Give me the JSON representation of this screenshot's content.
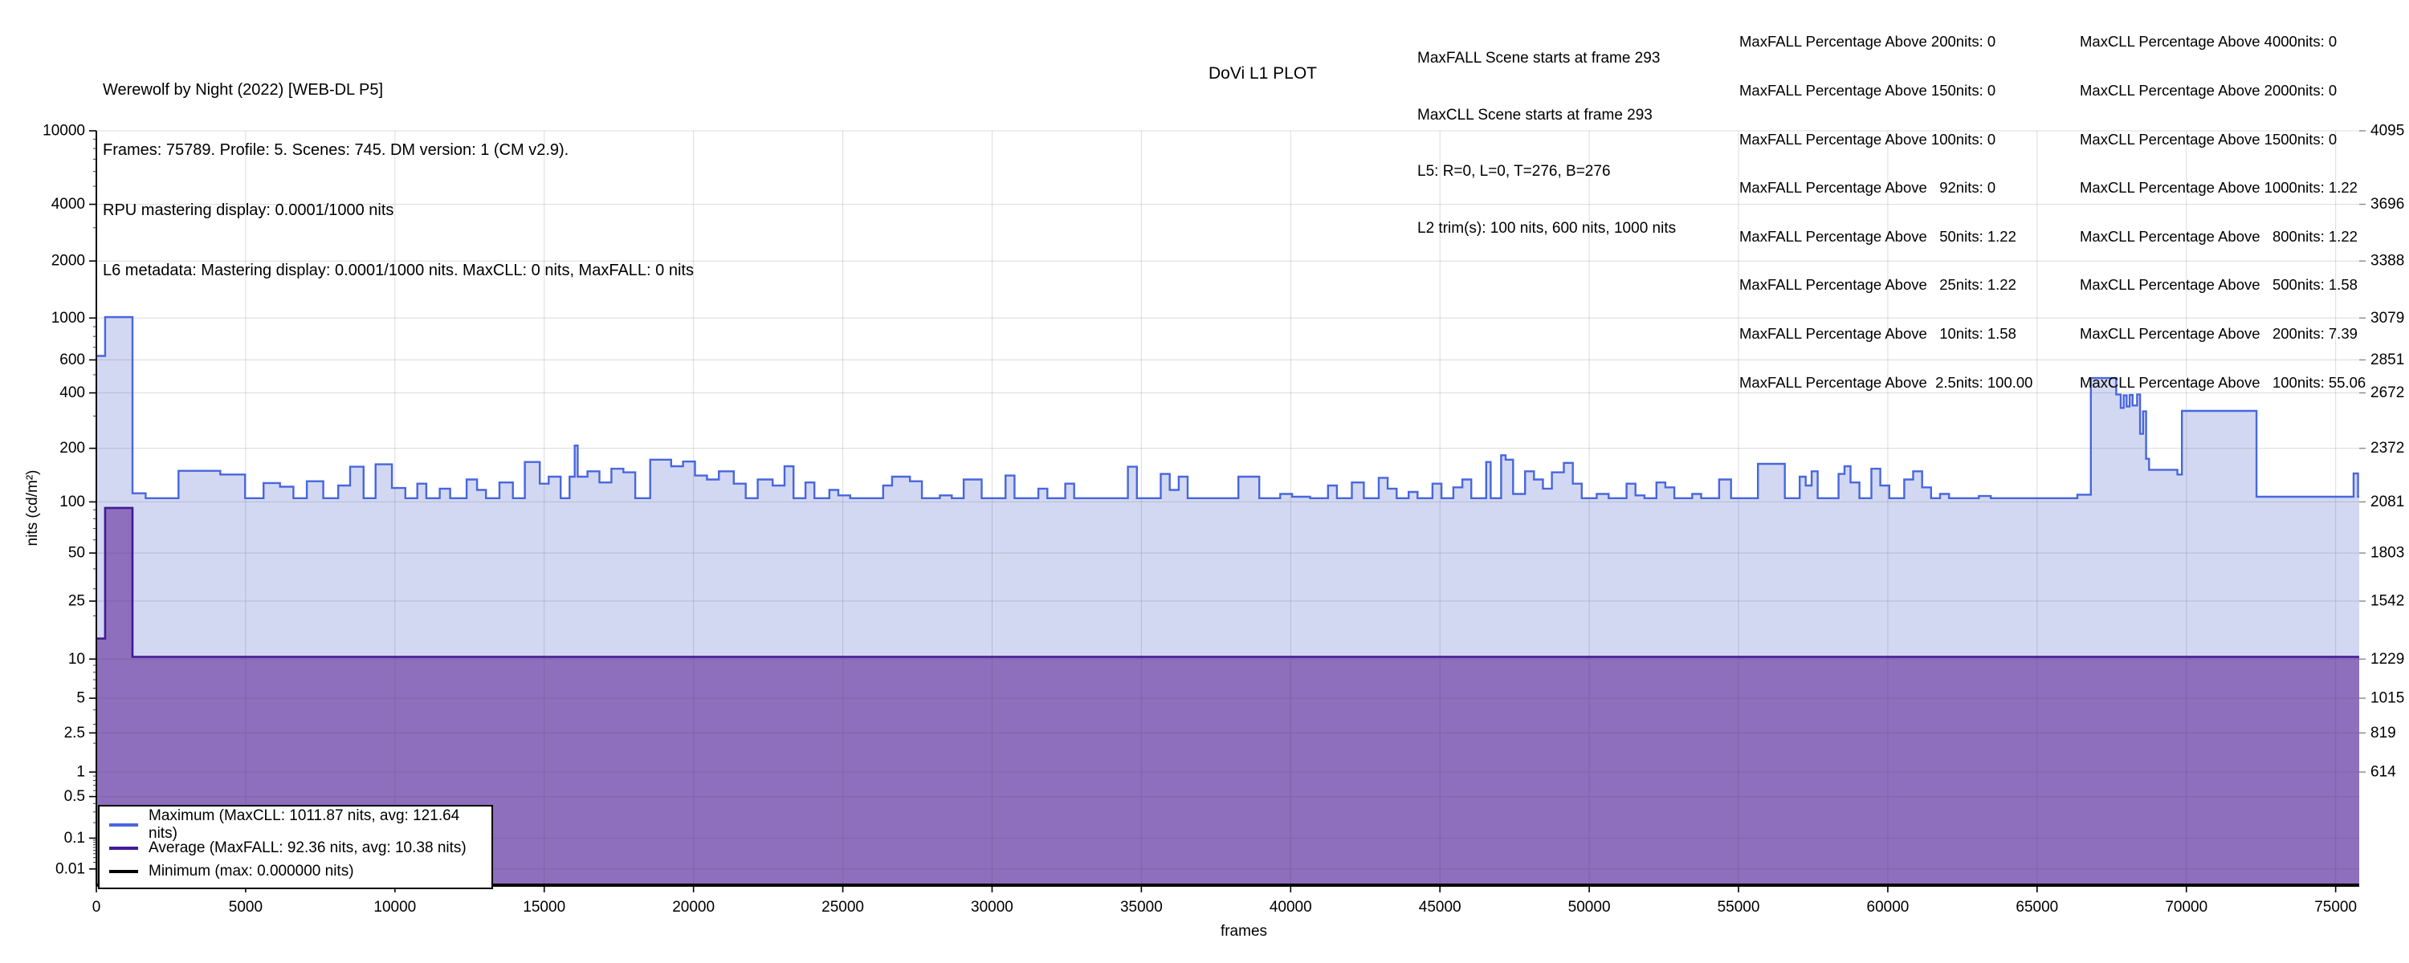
{
  "header": {
    "file_info": [
      "Werewolf by Night (2022) [WEB-DL P5]",
      "Frames: 75789. Profile: 5. Scenes: 745. DM version: 1 (CM v2.9).",
      "RPU mastering display: 0.0001/1000 nits",
      "L6 metadata: Mastering display: 0.0001/1000 nits. MaxCLL: 0 nits, MaxFALL: 0 nits"
    ],
    "scene_info": [
      "MaxFALL Scene starts at frame 293",
      "MaxCLL Scene starts at frame 293",
      "L5: R=0, L=0, T=276, B=276",
      "L2 trim(s): 100 nits, 600 nits, 1000 nits"
    ],
    "maxfall_table": [
      "MaxFALL Percentage Above 200nits: 0",
      "MaxFALL Percentage Above 150nits: 0",
      "MaxFALL Percentage Above 100nits: 0",
      "MaxFALL Percentage Above   92nits: 0",
      "MaxFALL Percentage Above   50nits: 1.22",
      "MaxFALL Percentage Above   25nits: 1.22",
      "MaxFALL Percentage Above   10nits: 1.58",
      "MaxFALL Percentage Above  2.5nits: 100.00"
    ],
    "maxcll_table": [
      "MaxCLL Percentage Above 4000nits: 0",
      "MaxCLL Percentage Above 2000nits: 0",
      "MaxCLL Percentage Above 1500nits: 0",
      "MaxCLL Percentage Above 1000nits: 1.22",
      "MaxCLL Percentage Above   800nits: 1.22",
      "MaxCLL Percentage Above   500nits: 1.58",
      "MaxCLL Percentage Above   200nits: 7.39",
      "MaxCLL Percentage Above   100nits: 55.06"
    ]
  },
  "chart_data": {
    "type": "area",
    "title": "DoVi L1 PLOT",
    "xlabel": "frames",
    "ylabel": "nits (cd/m²)",
    "xlim": [
      0,
      75789
    ],
    "y_axis_scale": "pq-12bit",
    "grid": true,
    "legend_position": "lower-left",
    "x_major_ticks": [
      0,
      5000,
      10000,
      15000,
      20000,
      25000,
      30000,
      35000,
      40000,
      45000,
      50000,
      55000,
      60000,
      65000,
      70000,
      75000
    ],
    "left_ticks": [
      {
        "nits": 10000,
        "label": "10000"
      },
      {
        "nits": 4000,
        "label": "4000"
      },
      {
        "nits": 2000,
        "label": "2000"
      },
      {
        "nits": 1000,
        "label": "1000"
      },
      {
        "nits": 600,
        "label": "600"
      },
      {
        "nits": 400,
        "label": "400"
      },
      {
        "nits": 200,
        "label": "200"
      },
      {
        "nits": 100,
        "label": "100"
      },
      {
        "nits": 50,
        "label": "50"
      },
      {
        "nits": 25,
        "label": "25"
      },
      {
        "nits": 10,
        "label": "10"
      },
      {
        "nits": 5,
        "label": "5"
      },
      {
        "nits": 2.5,
        "label": "2.5"
      },
      {
        "nits": 1,
        "label": "1"
      },
      {
        "nits": 0.5,
        "label": "0.5"
      },
      {
        "nits": 0.1,
        "label": "0.1"
      },
      {
        "nits": 0.01,
        "label": "0.01"
      }
    ],
    "right_ticks": [
      {
        "nits": 10000,
        "label": "4095"
      },
      {
        "nits": 4000,
        "label": "3696"
      },
      {
        "nits": 2000,
        "label": "3388"
      },
      {
        "nits": 1000,
        "label": "3079"
      },
      {
        "nits": 600,
        "label": "2851"
      },
      {
        "nits": 400,
        "label": "2672"
      },
      {
        "nits": 200,
        "label": "2372"
      },
      {
        "nits": 100,
        "label": "2081"
      },
      {
        "nits": 50,
        "label": "1803"
      },
      {
        "nits": 25,
        "label": "1542"
      },
      {
        "nits": 10,
        "label": "1229"
      },
      {
        "nits": 5,
        "label": "1015"
      },
      {
        "nits": 2.5,
        "label": "819"
      },
      {
        "nits": 1,
        "label": "614"
      }
    ],
    "series": [
      {
        "name": "Maximum",
        "legend_label": "Maximum (MaxCLL: 1011.87 nits, avg: 121.64 nits)",
        "color": "#4866df",
        "fill": "#d2d8f2",
        "width": 2.4,
        "steps": [
          [
            0,
            630
          ],
          [
            293,
            1011.87
          ],
          [
            1210,
            112
          ],
          [
            1650,
            105
          ],
          [
            2750,
            150
          ],
          [
            4150,
            143
          ],
          [
            4980,
            105
          ],
          [
            5600,
            128
          ],
          [
            6150,
            122
          ],
          [
            6600,
            105
          ],
          [
            7050,
            131
          ],
          [
            7600,
            105
          ],
          [
            8100,
            124
          ],
          [
            8500,
            158
          ],
          [
            8950,
            105
          ],
          [
            9350,
            163
          ],
          [
            9900,
            120
          ],
          [
            10350,
            105
          ],
          [
            10750,
            127
          ],
          [
            11050,
            105
          ],
          [
            11500,
            119
          ],
          [
            11850,
            105
          ],
          [
            12400,
            134
          ],
          [
            12750,
            117
          ],
          [
            13050,
            105
          ],
          [
            13500,
            129
          ],
          [
            13950,
            105
          ],
          [
            14350,
            168
          ],
          [
            14850,
            127
          ],
          [
            15150,
            139
          ],
          [
            15550,
            105
          ],
          [
            15850,
            139
          ],
          [
            16020,
            207
          ],
          [
            16120,
            139
          ],
          [
            16450,
            149
          ],
          [
            16850,
            129
          ],
          [
            17250,
            154
          ],
          [
            17650,
            147
          ],
          [
            18050,
            105
          ],
          [
            18550,
            173
          ],
          [
            19250,
            159
          ],
          [
            19650,
            169
          ],
          [
            20050,
            141
          ],
          [
            20450,
            134
          ],
          [
            20850,
            149
          ],
          [
            21350,
            127
          ],
          [
            21750,
            105
          ],
          [
            22150,
            134
          ],
          [
            22650,
            124
          ],
          [
            23050,
            159
          ],
          [
            23350,
            105
          ],
          [
            23750,
            129
          ],
          [
            24050,
            105
          ],
          [
            24550,
            117
          ],
          [
            24850,
            109
          ],
          [
            25250,
            105
          ],
          [
            26350,
            124
          ],
          [
            26650,
            139
          ],
          [
            27250,
            131
          ],
          [
            27650,
            105
          ],
          [
            28250,
            109
          ],
          [
            28650,
            105
          ],
          [
            29050,
            134
          ],
          [
            29650,
            105
          ],
          [
            30450,
            141
          ],
          [
            30750,
            105
          ],
          [
            31550,
            119
          ],
          [
            31850,
            105
          ],
          [
            32450,
            127
          ],
          [
            32750,
            105
          ],
          [
            34550,
            158
          ],
          [
            34850,
            105
          ],
          [
            35650,
            144
          ],
          [
            35950,
            117
          ],
          [
            36250,
            139
          ],
          [
            36550,
            105
          ],
          [
            38250,
            139
          ],
          [
            38950,
            105
          ],
          [
            39650,
            111
          ],
          [
            40050,
            107
          ],
          [
            40650,
            105
          ],
          [
            41250,
            124
          ],
          [
            41550,
            105
          ],
          [
            42050,
            129
          ],
          [
            42450,
            105
          ],
          [
            42950,
            137
          ],
          [
            43250,
            119
          ],
          [
            43550,
            105
          ],
          [
            43950,
            114
          ],
          [
            44250,
            105
          ],
          [
            44750,
            127
          ],
          [
            45050,
            105
          ],
          [
            45450,
            121
          ],
          [
            45750,
            134
          ],
          [
            46050,
            105
          ],
          [
            46550,
            168
          ],
          [
            46700,
            105
          ],
          [
            47050,
            183
          ],
          [
            47200,
            173
          ],
          [
            47450,
            111
          ],
          [
            47850,
            149
          ],
          [
            48150,
            134
          ],
          [
            48450,
            119
          ],
          [
            48750,
            147
          ],
          [
            49150,
            166
          ],
          [
            49450,
            127
          ],
          [
            49750,
            105
          ],
          [
            50250,
            111
          ],
          [
            50650,
            105
          ],
          [
            51250,
            127
          ],
          [
            51550,
            109
          ],
          [
            51850,
            105
          ],
          [
            52250,
            129
          ],
          [
            52550,
            121
          ],
          [
            52850,
            105
          ],
          [
            53450,
            111
          ],
          [
            53750,
            105
          ],
          [
            54350,
            134
          ],
          [
            54750,
            105
          ],
          [
            55650,
            164
          ],
          [
            56550,
            105
          ],
          [
            57050,
            139
          ],
          [
            57250,
            124
          ],
          [
            57450,
            149
          ],
          [
            57650,
            105
          ],
          [
            58350,
            144
          ],
          [
            58550,
            159
          ],
          [
            58750,
            129
          ],
          [
            59050,
            105
          ],
          [
            59450,
            154
          ],
          [
            59750,
            124
          ],
          [
            60050,
            105
          ],
          [
            60550,
            134
          ],
          [
            60850,
            149
          ],
          [
            61150,
            121
          ],
          [
            61450,
            105
          ],
          [
            61750,
            111
          ],
          [
            62050,
            105
          ],
          [
            63050,
            108
          ],
          [
            63450,
            105
          ],
          [
            66350,
            110
          ],
          [
            66800,
            480
          ],
          [
            67650,
            392
          ],
          [
            67800,
            332
          ],
          [
            67900,
            388
          ],
          [
            68000,
            338
          ],
          [
            68100,
            390
          ],
          [
            68200,
            342
          ],
          [
            68350,
            392
          ],
          [
            68450,
            240
          ],
          [
            68550,
            318
          ],
          [
            68650,
            175
          ],
          [
            68750,
            152
          ],
          [
            69700,
            143
          ],
          [
            69850,
            320
          ],
          [
            72350,
            107
          ],
          [
            75600,
            145
          ],
          [
            75750,
            107
          ]
        ]
      },
      {
        "name": "Average",
        "legend_label": "Average (MaxFALL: 92.36 nits, avg: 10.38 nits)",
        "color": "#431a95",
        "fill": "#8d6fbe",
        "width": 2.6,
        "steps": [
          [
            0,
            14
          ],
          [
            293,
            92.36
          ],
          [
            1210,
            10.38
          ]
        ]
      },
      {
        "name": "Minimum",
        "legend_label": "Minimum (max: 0.000000 nits)",
        "color": "#000000",
        "fill": null,
        "width": 4,
        "steps": [
          [
            0,
            0
          ]
        ]
      }
    ]
  }
}
